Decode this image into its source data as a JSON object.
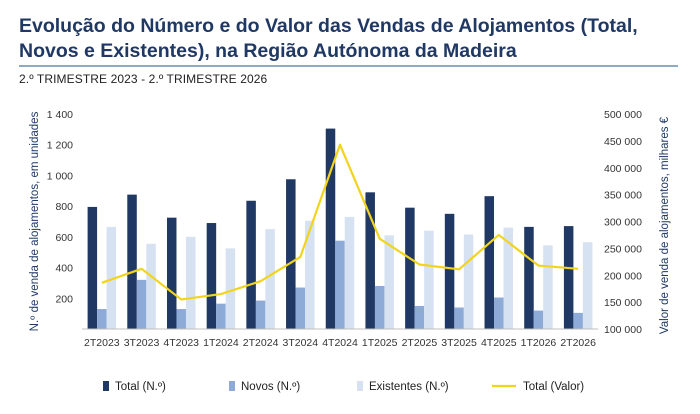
{
  "title": "Evolução do Número e do Valor das Vendas de Alojamentos (Total, Novos e Existentes), na Região Autónoma da Madeira",
  "subtitle": "2.º TRIMESTRE 2023 - 2.º TRIMESTRE 2026",
  "chart_data": {
    "type": "bar",
    "categories": [
      "2T2023",
      "3T2023",
      "4T2023",
      "1T2024",
      "2T2024",
      "3T2024",
      "4T2024",
      "1T2025",
      "2T2025",
      "3T2025",
      "4T2025",
      "1T2026",
      "2T2026"
    ],
    "series": [
      {
        "name": "Total (N.º)",
        "type": "bar",
        "axis": "left",
        "color": "#1f3864",
        "values": [
          795,
          875,
          725,
          690,
          835,
          975,
          1305,
          890,
          790,
          750,
          865,
          665,
          670
        ]
      },
      {
        "name": "Novos (N.º)",
        "type": "bar",
        "axis": "left",
        "color": "#8eaad6",
        "values": [
          130,
          320,
          130,
          165,
          185,
          270,
          575,
          280,
          150,
          140,
          205,
          120,
          105
        ]
      },
      {
        "name": "Existentes (N.º)",
        "type": "bar",
        "axis": "left",
        "color": "#d6e2f2",
        "values": [
          665,
          555,
          600,
          525,
          650,
          705,
          730,
          610,
          640,
          615,
          660,
          545,
          565
        ]
      },
      {
        "name": "Total (Valor)",
        "type": "line",
        "axis": "right",
        "color": "#f2d41c",
        "values": [
          186000,
          212000,
          155000,
          165000,
          189000,
          234000,
          443000,
          268000,
          220000,
          211000,
          275000,
          218000,
          212000
        ]
      }
    ],
    "ylabel": "N.º de venda de alojamentos, em unidades",
    "y2label": "Valor de venda de alojamentos, milhares €",
    "ylim": [
      0,
      1400
    ],
    "y2lim": [
      100000,
      500000
    ],
    "yticks": [
      "",
      "200",
      "400",
      "600",
      "800",
      "1 000",
      "1 200",
      "1 400"
    ],
    "y2ticks": [
      "100 000",
      "150 000",
      "200 000",
      "250 000",
      "300 000",
      "350 000",
      "400 000",
      "450 000",
      "500 000"
    ],
    "grid": false,
    "legend": "bottom"
  }
}
